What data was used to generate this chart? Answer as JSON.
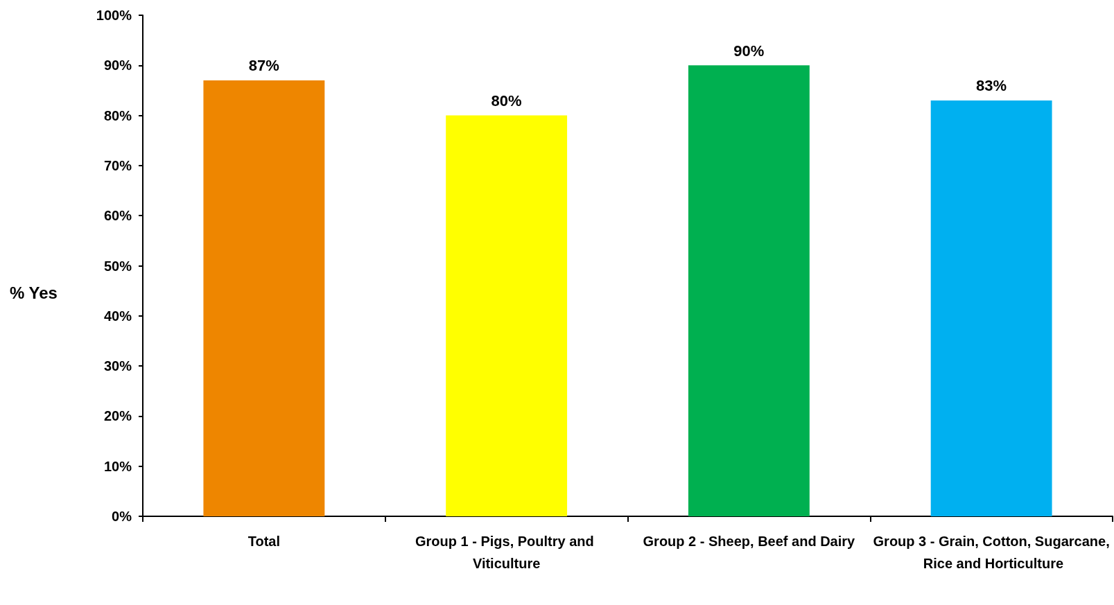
{
  "chart_data": {
    "type": "bar",
    "ylabel": "% Yes",
    "categories": [
      "Total",
      "Group 1 - Pigs, Poultry and Viticulture",
      "Group 2 - Sheep, Beef and Dairy",
      "Group 3 - Grain, Cotton, Sugarcane, Rice and Horticulture"
    ],
    "values": [
      87,
      80,
      90,
      83
    ],
    "colors": [
      "#ee8600",
      "#ffff00",
      "#00b050",
      "#00b0f0"
    ],
    "value_labels": [
      "87%",
      "80%",
      "90%",
      "83%"
    ],
    "ylim": [
      0,
      100
    ],
    "yticks": [
      {
        "value": 0,
        "label": "0%"
      },
      {
        "value": 10,
        "label": "10%"
      },
      {
        "value": 20,
        "label": "20%"
      },
      {
        "value": 30,
        "label": "30%"
      },
      {
        "value": 40,
        "label": "40%"
      },
      {
        "value": 50,
        "label": "50%"
      },
      {
        "value": 60,
        "label": "60%"
      },
      {
        "value": 70,
        "label": "70%"
      },
      {
        "value": 80,
        "label": "80%"
      },
      {
        "value": 90,
        "label": "90%"
      },
      {
        "value": 100,
        "label": "100%"
      }
    ],
    "grid": false
  }
}
